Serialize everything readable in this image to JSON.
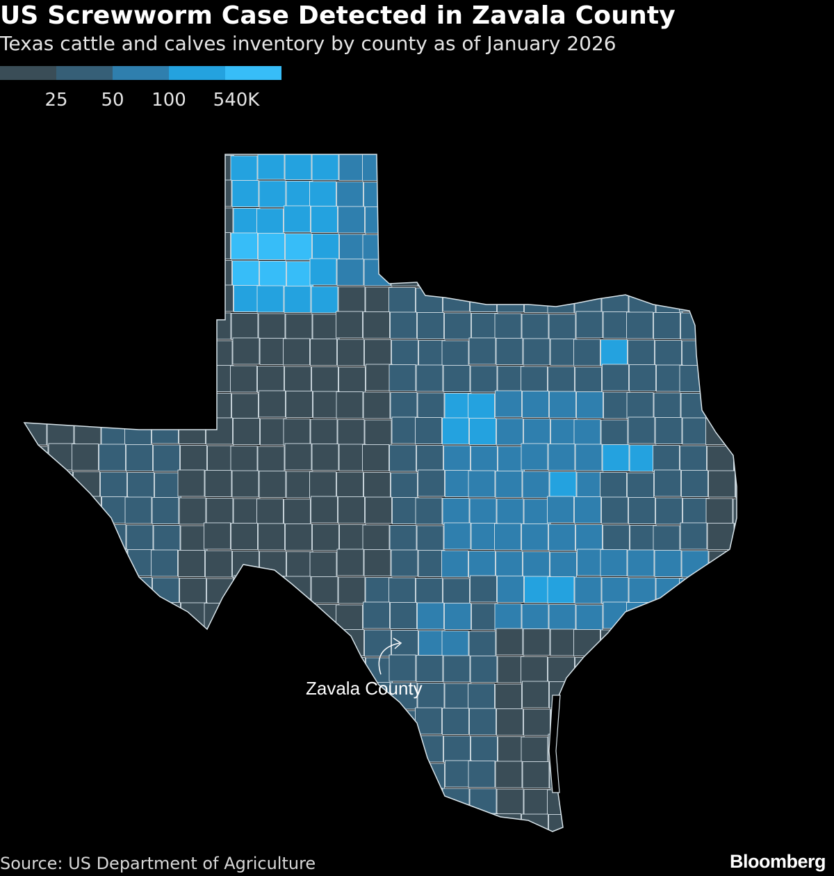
{
  "title": "US Screwworm Case Detected in Zavala County",
  "subtitle": "Texas cattle and calves inventory by county as of January 2026",
  "legend": {
    "colors": [
      "#3a4d57",
      "#365f77",
      "#2f7fae",
      "#24a2df",
      "#37bdf8"
    ],
    "labels": [
      "25",
      "50",
      "100",
      "540K"
    ]
  },
  "annotation": {
    "label": "Zavala County",
    "icon": "curved-arrow-icon"
  },
  "source": "Source: US Department of Agriculture",
  "brand": "Bloomberg",
  "colors": {
    "background": "#000000",
    "county_border": "#d8e4ea",
    "text": "#ffffff"
  }
}
